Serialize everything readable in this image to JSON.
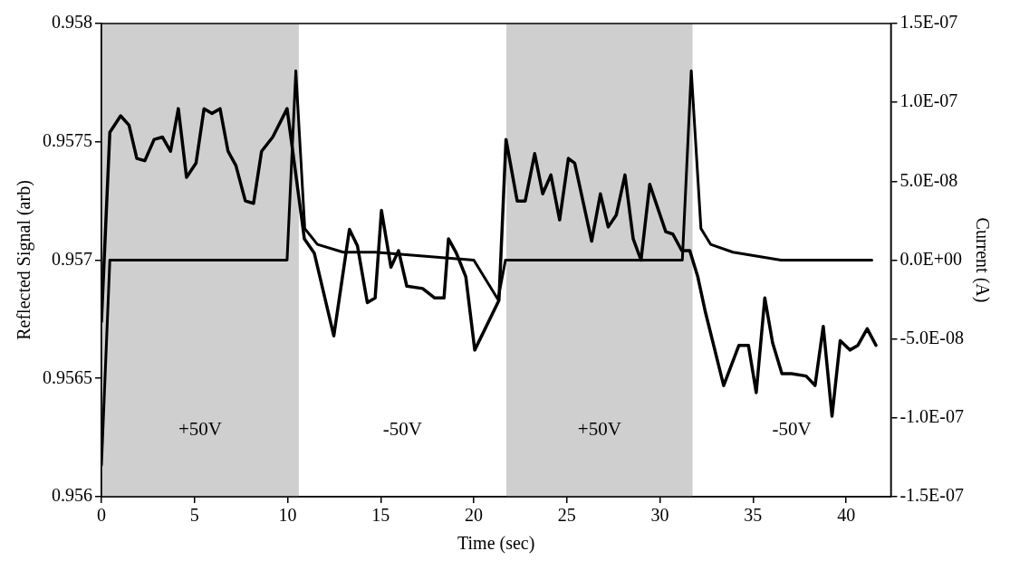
{
  "chart_data": {
    "type": "line",
    "xlabel": "Time (sec)",
    "ylabel": "Reflected Signal (arb)",
    "y2label": "Current (A)",
    "xlim": [
      0,
      42.4
    ],
    "xticks": [
      0,
      5,
      10,
      15,
      20,
      25,
      30,
      35,
      40
    ],
    "ylim": [
      0.956,
      0.958
    ],
    "yticks": [
      0.956,
      0.9565,
      0.957,
      0.9575,
      0.958
    ],
    "y2lim": [
      -1.5e-07,
      1.5e-07
    ],
    "y2ticks": [
      {
        "value": -1.5e-07,
        "label": "-1.5E-07"
      },
      {
        "value": -1e-07,
        "label": "-1.0E-07"
      },
      {
        "value": -5e-08,
        "label": "-5.0E-08"
      },
      {
        "value": 0,
        "label": "0.0E+00"
      },
      {
        "value": 5e-08,
        "label": "5.0E-08"
      },
      {
        "value": 1e-07,
        "label": "1.0E-07"
      },
      {
        "value": 1.5e-07,
        "label": "1.5E-07"
      }
    ],
    "grid": false,
    "legend": false,
    "marker": "none",
    "line_style": "solid",
    "bands": [
      {
        "axis": "x",
        "from": 0,
        "to": 10.6,
        "label": "+50V",
        "color": "#cfcfcf"
      },
      {
        "axis": "x",
        "from": 21.75,
        "to": 31.75,
        "label": "+50V",
        "color": "#cfcfcf"
      }
    ],
    "annotations": [
      "-50V",
      "-50V"
    ],
    "series": [
      {
        "color": "#000000",
        "x": [
          0,
          0.45,
          1.03,
          1.48,
          1.9,
          2.33,
          2.83,
          3.28,
          3.71,
          4.13,
          4.57,
          5.08,
          5.51,
          5.93,
          6.37,
          6.8,
          7.22,
          7.73,
          8.17,
          8.6,
          9.2,
          9.97,
          10.9,
          11.43,
          12.48,
          13.32,
          13.75,
          14.28,
          14.7,
          15.04,
          15.55,
          15.96,
          16.4,
          17.25,
          17.9,
          18.4,
          18.64,
          19.06,
          19.57,
          20.05,
          21.35,
          21.73,
          22.33,
          22.76,
          23.27,
          23.7,
          24.14,
          24.61,
          25.08,
          25.42,
          26.33,
          26.8,
          27.22,
          27.65,
          28.12,
          28.56,
          28.98,
          29.45,
          30.31,
          30.69,
          31.17,
          31.6,
          32.03,
          32.44,
          33.42,
          34.24,
          34.75,
          35.17,
          35.63,
          36.05,
          36.55,
          37.07,
          37.85,
          38.33,
          38.77,
          39.24,
          39.68,
          40.2,
          40.63,
          41.13,
          41.6
        ],
        "values": [
          0.95674,
          0.95754,
          0.95761,
          0.95757,
          0.95743,
          0.95742,
          0.95751,
          0.95752,
          0.95746,
          0.95764,
          0.95735,
          0.95741,
          0.95764,
          0.95762,
          0.95764,
          0.95746,
          0.9574,
          0.95725,
          0.95724,
          0.95746,
          0.95752,
          0.95764,
          0.95709,
          0.95703,
          0.95668,
          0.95713,
          0.95706,
          0.95682,
          0.95684,
          0.95721,
          0.95697,
          0.95704,
          0.95689,
          0.95688,
          0.95684,
          0.95684,
          0.95709,
          0.95703,
          0.95693,
          0.95662,
          0.95683,
          0.95751,
          0.95725,
          0.95725,
          0.95745,
          0.95728,
          0.95736,
          0.95717,
          0.95743,
          0.95741,
          0.95708,
          0.95728,
          0.95714,
          0.95719,
          0.95736,
          0.95709,
          0.957,
          0.95732,
          0.95712,
          0.95711,
          0.95704,
          0.95704,
          0.95693,
          0.95678,
          0.95647,
          0.95664,
          0.95664,
          0.95644,
          0.95684,
          0.95665,
          0.95652,
          0.95652,
          0.95651,
          0.95647,
          0.95672,
          0.95634,
          0.95666,
          0.95662,
          0.95664,
          0.95671,
          0.95664
        ]
      },
      {
        "color": "#000000",
        "axis": "y2",
        "x": [
          0,
          0.45,
          9.97,
          10.44,
          10.92,
          11.6,
          12.98,
          14.7,
          20,
          21.3,
          21.7,
          31.2,
          31.68,
          32.2,
          32.72,
          33.92,
          36.5,
          41.38
        ],
        "values": [
          -1.3e-07,
          0,
          0,
          1.2e-07,
          2e-08,
          1e-08,
          5e-09,
          5e-09,
          0,
          -2.5e-08,
          0,
          0,
          1.2e-07,
          2e-08,
          1e-08,
          5e-09,
          0,
          0
        ]
      }
    ]
  }
}
